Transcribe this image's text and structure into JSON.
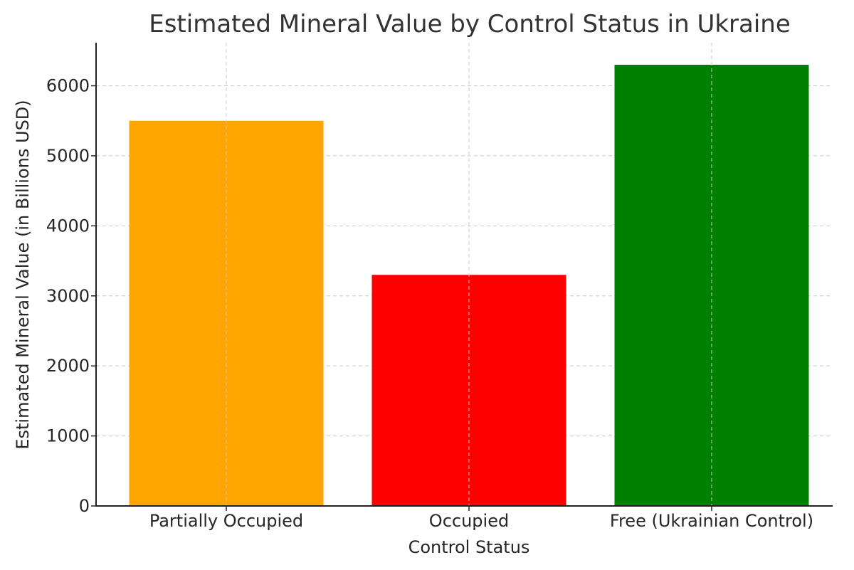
{
  "chart_data": {
    "type": "bar",
    "title": "Estimated Mineral Value by Control Status in Ukraine",
    "xlabel": "Control Status",
    "ylabel": "Estimated Mineral Value (in Billions USD)",
    "categories": [
      "Partially Occupied",
      "Occupied",
      "Free (Ukrainian Control)"
    ],
    "values": [
      5500,
      3300,
      6300
    ],
    "colors": [
      "#FFA500",
      "#FF0000",
      "#008000"
    ],
    "ylim": [
      0,
      6615
    ],
    "yticks": [
      0,
      1000,
      2000,
      3000,
      4000,
      5000,
      6000
    ],
    "grid": true,
    "legend": "none"
  }
}
